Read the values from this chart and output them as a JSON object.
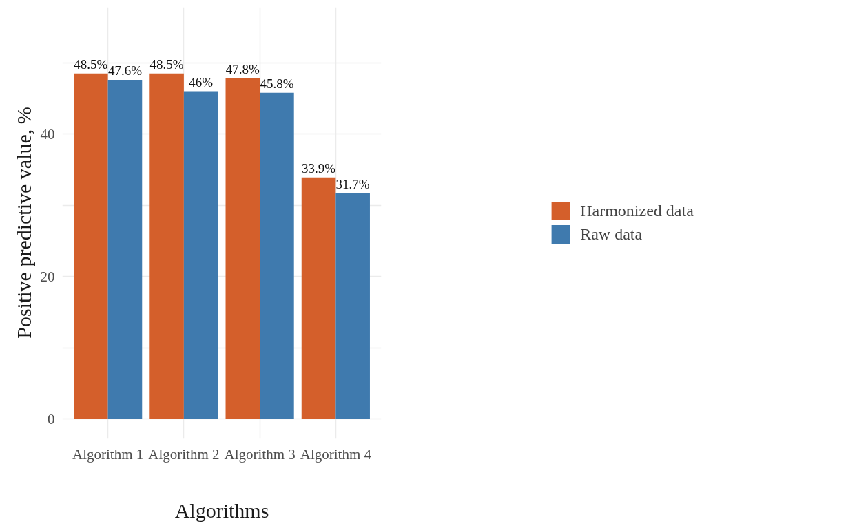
{
  "chart_data": {
    "type": "bar",
    "xlabel": "Algorithms",
    "ylabel": "Positive predictive value, %",
    "categories": [
      "Algorithm 1",
      "Algorithm 2",
      "Algorithm 3",
      "Algorithm 4"
    ],
    "series": [
      {
        "name": "Harmonized data",
        "color": "#d45f2b",
        "values": [
          48.5,
          48.5,
          47.8,
          33.9
        ],
        "value_labels": [
          "48.5%",
          "48.5%",
          "47.8%",
          "33.9%"
        ]
      },
      {
        "name": "Raw data",
        "color": "#3f7aae",
        "values": [
          47.6,
          46,
          45.8,
          31.7
        ],
        "value_labels": [
          "47.6%",
          "46%",
          "45.8%",
          "31.7%"
        ]
      }
    ],
    "ylim": [
      -2.7,
      57.8
    ],
    "yticks": [
      0,
      {
        "value": 10,
        "label": null
      },
      20,
      {
        "value": 30,
        "label": null
      },
      40,
      {
        "value": 50,
        "label": null
      }
    ],
    "grid": true,
    "legend": "right"
  }
}
